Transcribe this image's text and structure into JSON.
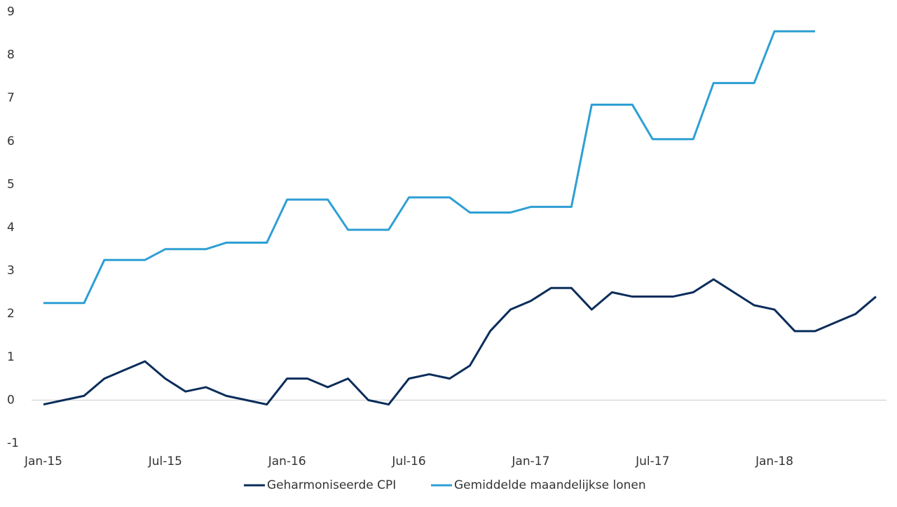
{
  "chart_data": {
    "type": "line",
    "categories": [
      "Jan-15",
      null,
      null,
      null,
      null,
      null,
      "Jul-15",
      null,
      null,
      null,
      null,
      null,
      "Jan-16",
      null,
      null,
      null,
      null,
      null,
      "Jul-16",
      null,
      null,
      null,
      null,
      null,
      "Jan-17",
      null,
      null,
      null,
      null,
      null,
      "Jul-17",
      null,
      null,
      null,
      null,
      null,
      "Jan-18",
      null,
      null,
      null,
      null,
      null
    ],
    "series": [
      {
        "name": "Geharmoniseerde CPI",
        "color": "#0b2d5b",
        "values": [
          -0.1,
          0.0,
          0.1,
          0.5,
          0.7,
          0.9,
          0.5,
          0.2,
          0.3,
          0.1,
          0.0,
          -0.1,
          0.5,
          0.5,
          0.3,
          0.5,
          0.0,
          -0.1,
          0.5,
          0.6,
          0.5,
          0.8,
          1.6,
          2.1,
          2.3,
          2.6,
          2.6,
          2.1,
          2.5,
          2.4,
          2.4,
          2.4,
          2.5,
          2.8,
          2.5,
          2.2,
          2.1,
          1.6,
          1.6,
          1.8,
          2.0,
          2.4
        ]
      },
      {
        "name": "Gemiddelde maandelijkse lonen",
        "color": "#2e9fd4",
        "values": [
          2.25,
          2.25,
          2.25,
          3.25,
          3.25,
          3.25,
          3.5,
          3.5,
          3.5,
          3.65,
          3.65,
          3.65,
          4.65,
          4.65,
          4.65,
          3.95,
          3.95,
          3.95,
          4.7,
          4.7,
          4.7,
          4.35,
          4.35,
          4.35,
          4.48,
          4.48,
          4.48,
          6.85,
          6.85,
          6.85,
          6.05,
          6.05,
          6.05,
          7.35,
          7.35,
          7.35,
          8.55,
          8.55,
          8.55,
          null,
          null,
          null
        ]
      }
    ],
    "ylim": [
      -1,
      9
    ],
    "yticks": [
      -1,
      0,
      1,
      2,
      3,
      4,
      5,
      6,
      7,
      8,
      9
    ],
    "grid": false,
    "legend": "bottom"
  }
}
